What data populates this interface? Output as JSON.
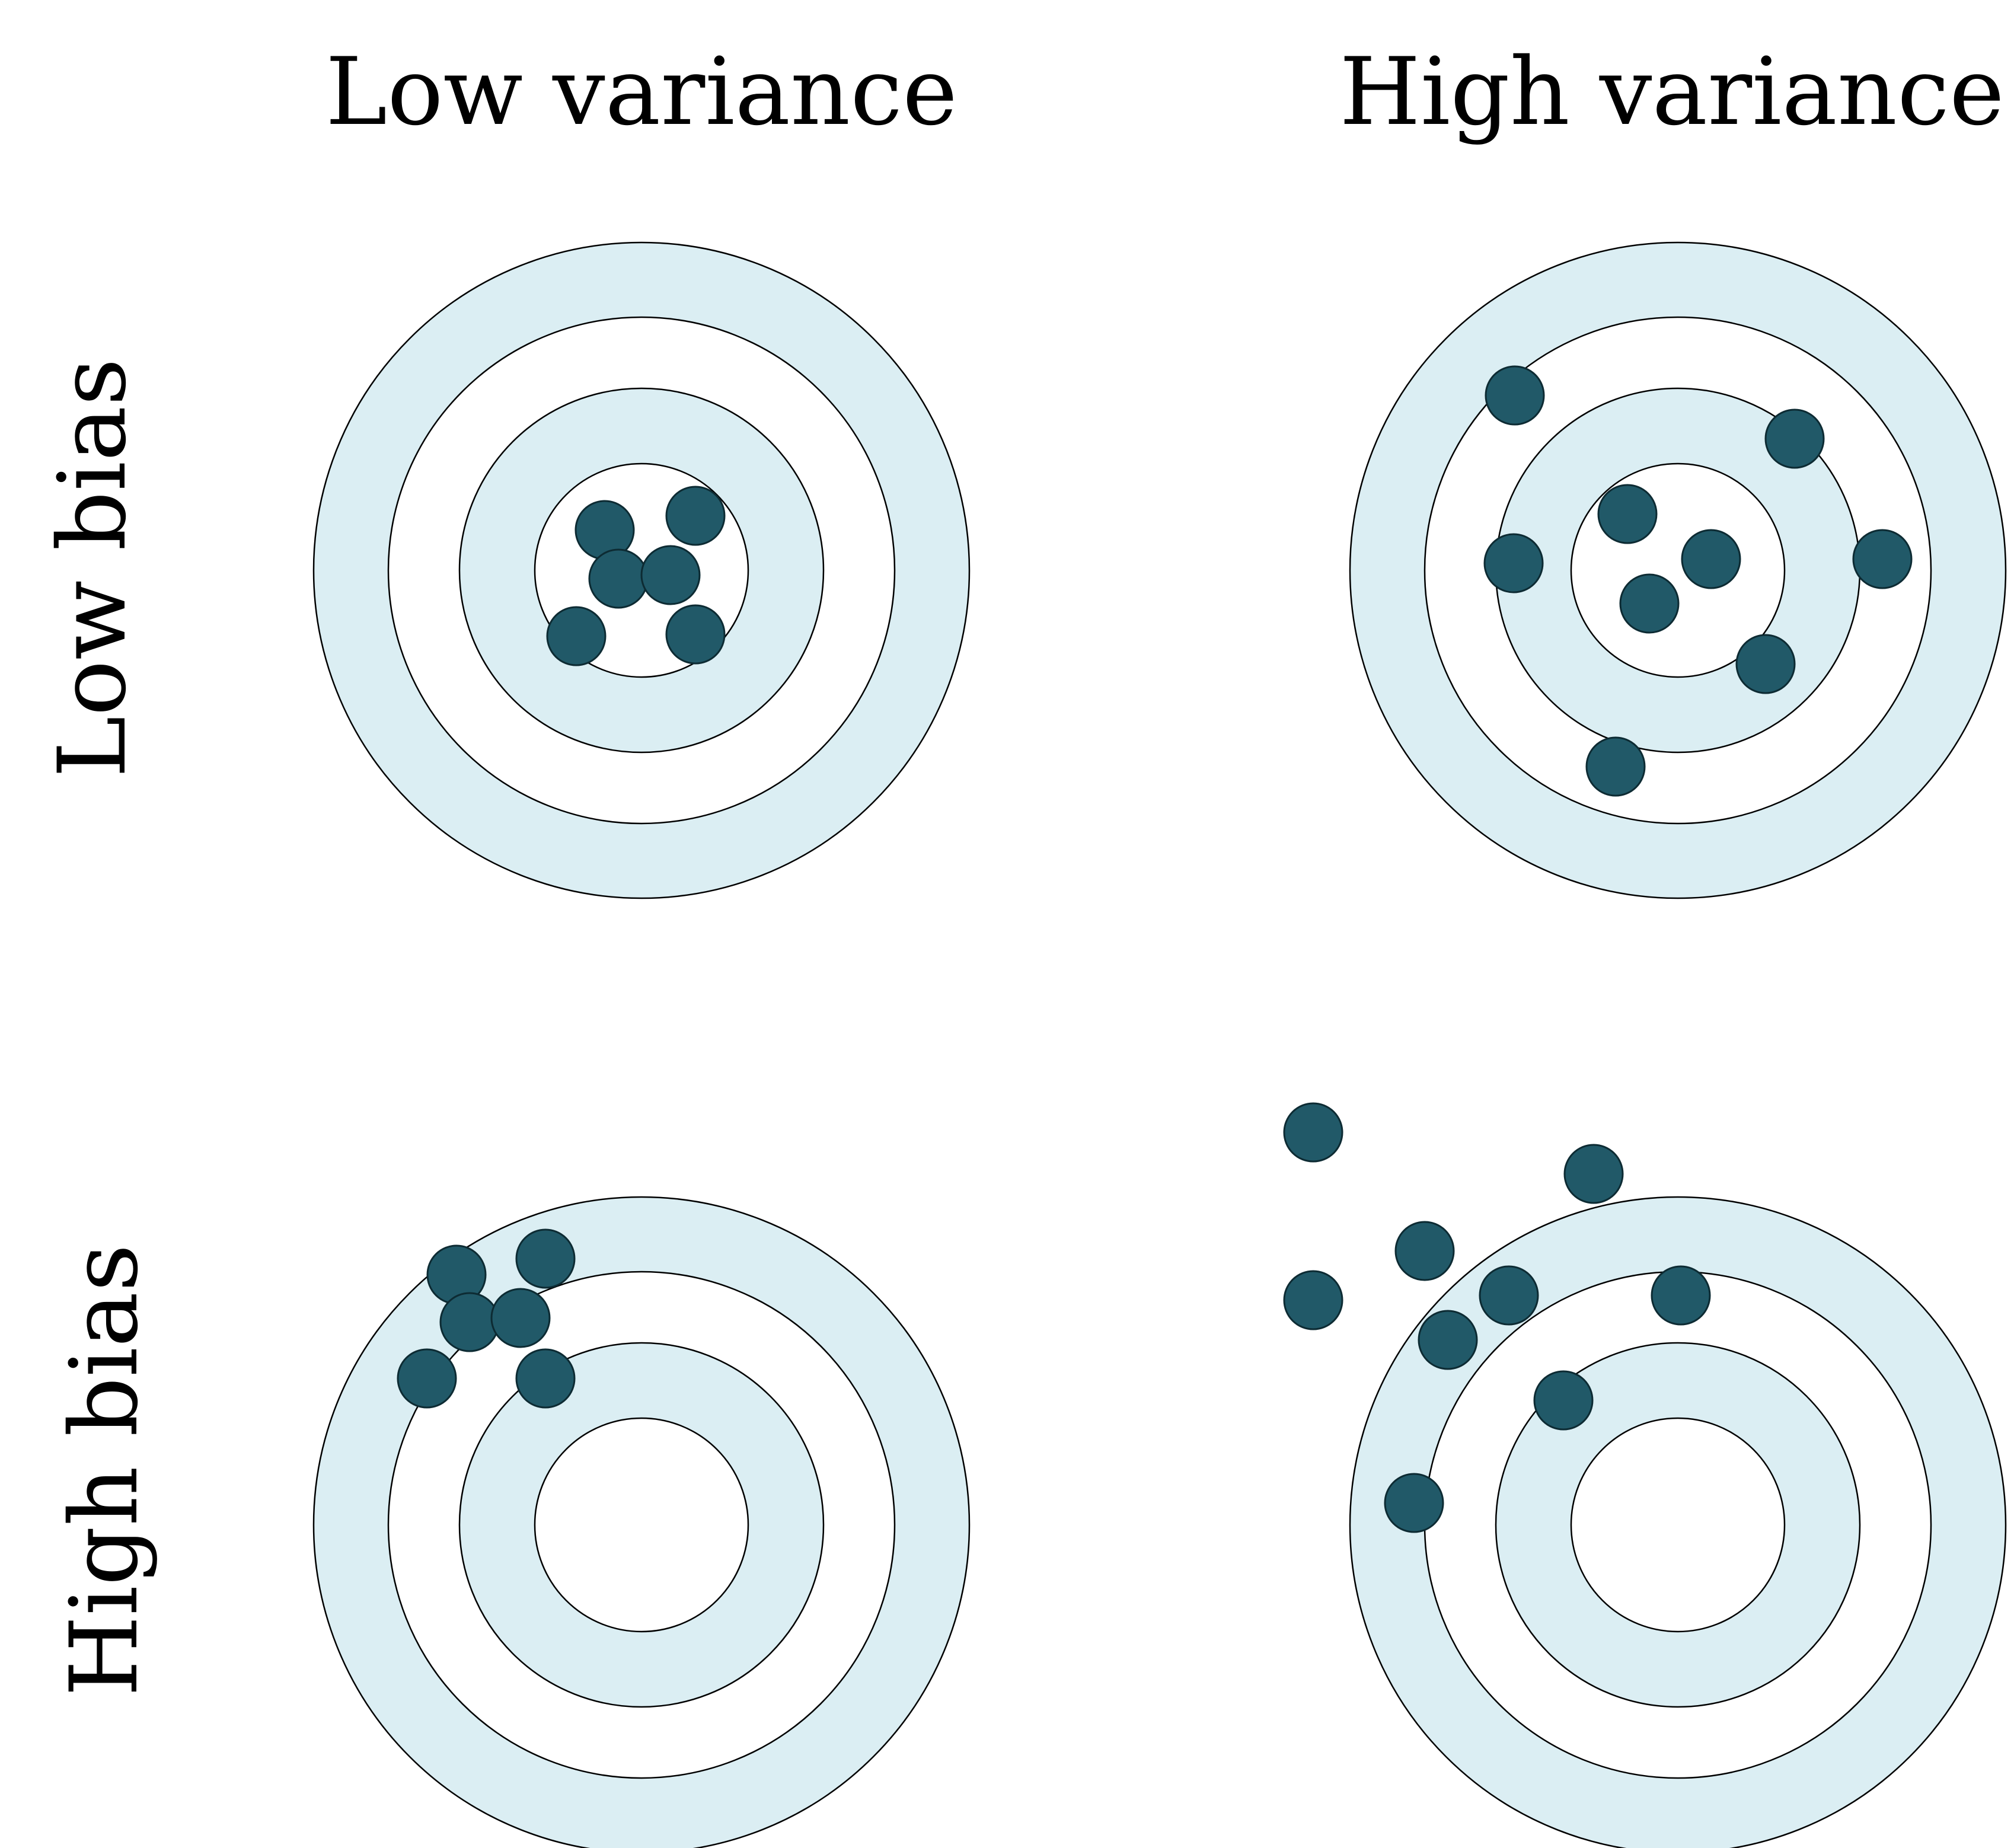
{
  "labels": {
    "col_low_variance": "Low variance",
    "col_high_variance": "High variance",
    "row_low_bias": "Low bias",
    "row_high_bias": "High bias"
  },
  "colors": {
    "ring_fill": "#dbeef3",
    "ring_stroke": "#000000",
    "background": "#ffffff",
    "dot_fill": "#215968",
    "dot_stroke": "#0d2b33"
  },
  "targets": [
    {
      "name": "target-low-bias-low-variance"
    },
    {
      "name": "target-low-bias-high-variance"
    },
    {
      "name": "target-high-bias-low-variance"
    },
    {
      "name": "target-high-bias-high-variance"
    }
  ]
}
